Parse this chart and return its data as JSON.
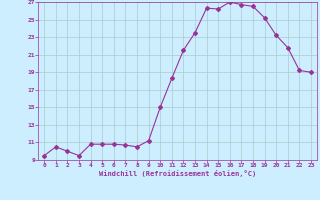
{
  "x": [
    0,
    1,
    2,
    3,
    4,
    5,
    6,
    7,
    8,
    9,
    10,
    11,
    12,
    13,
    14,
    15,
    16,
    17,
    18,
    19,
    20,
    21,
    22,
    23
  ],
  "y": [
    9.5,
    10.5,
    10.0,
    9.5,
    10.8,
    10.8,
    10.8,
    10.7,
    10.5,
    11.2,
    15.0,
    18.3,
    21.5,
    23.5,
    26.3,
    26.2,
    27.0,
    26.7,
    26.5,
    25.2,
    23.2,
    21.8,
    19.2,
    19.0
  ],
  "line_color": "#993399",
  "marker": "D",
  "marker_size": 2.0,
  "bg_color": "#cceeff",
  "grid_color": "#aacccc",
  "xlabel": "Windchill (Refroidissement éolien,°C)",
  "xlabel_color": "#993399",
  "tick_color": "#993399",
  "ylim": [
    9,
    27
  ],
  "xlim": [
    -0.5,
    23.5
  ],
  "yticks": [
    9,
    11,
    13,
    15,
    17,
    19,
    21,
    23,
    25,
    27
  ],
  "xticks": [
    0,
    1,
    2,
    3,
    4,
    5,
    6,
    7,
    8,
    9,
    10,
    11,
    12,
    13,
    14,
    15,
    16,
    17,
    18,
    19,
    20,
    21,
    22,
    23
  ]
}
